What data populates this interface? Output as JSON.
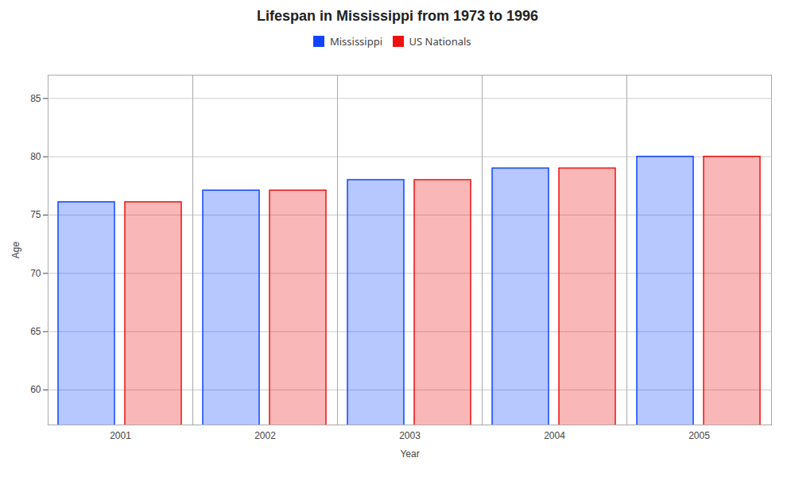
{
  "chart_data": {
    "type": "bar",
    "title": "Lifespan in Mississippi from 1973 to 1996",
    "xlabel": "Year",
    "ylabel": "Age",
    "categories": [
      "2001",
      "2002",
      "2003",
      "2004",
      "2005"
    ],
    "series": [
      {
        "name": "Mississippi",
        "color": "#1144ff",
        "values": [
          76.1,
          77.1,
          78.0,
          79.0,
          80.0
        ]
      },
      {
        "name": "US Nationals",
        "color": "#ee1111",
        "values": [
          76.1,
          77.1,
          78.0,
          79.0,
          80.0
        ]
      }
    ],
    "ylim": [
      57,
      87
    ],
    "yticks": [
      60,
      65,
      70,
      75,
      80,
      85
    ],
    "grid": true,
    "legend": "top"
  }
}
